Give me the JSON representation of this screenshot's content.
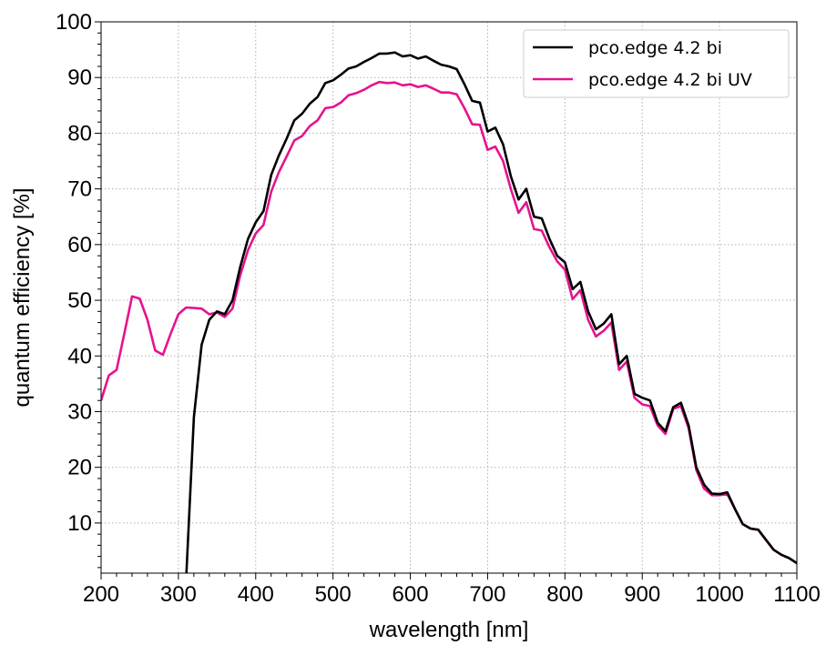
{
  "chart_data": {
    "type": "line",
    "xlabel": "wavelength [nm]",
    "ylabel": "quantum efficiency [%]",
    "xlim": [
      200,
      1100
    ],
    "ylim": [
      1,
      100
    ],
    "xticks": [
      200,
      300,
      400,
      500,
      600,
      700,
      800,
      900,
      1000,
      1100
    ],
    "yticks": [
      10,
      20,
      30,
      40,
      50,
      60,
      70,
      80,
      90,
      100
    ],
    "grid": true,
    "legend_position": "top-right",
    "series": [
      {
        "name": "pco.edge 4.2 bi",
        "color": "#000000",
        "x": [
          310,
          320,
          330,
          340,
          350,
          360,
          370,
          380,
          390,
          400,
          410,
          420,
          430,
          440,
          450,
          460,
          470,
          480,
          490,
          500,
          510,
          520,
          530,
          540,
          550,
          560,
          570,
          580,
          590,
          600,
          610,
          620,
          630,
          640,
          650,
          660,
          670,
          680,
          690,
          700,
          710,
          720,
          730,
          740,
          750,
          760,
          770,
          780,
          790,
          800,
          810,
          820,
          830,
          840,
          850,
          860,
          870,
          880,
          890,
          900,
          910,
          920,
          930,
          940,
          950,
          960,
          970,
          980,
          990,
          1000,
          1010,
          1020,
          1030,
          1040,
          1050,
          1060,
          1070,
          1080,
          1090,
          1100
        ],
        "y": [
          0,
          29,
          42,
          46.5,
          48,
          47.5,
          50,
          56,
          61,
          64,
          66,
          72.5,
          76,
          79,
          82.3,
          83.5,
          85.3,
          86.5,
          89,
          89.5,
          90.5,
          91.6,
          92,
          92.8,
          93.5,
          94.3,
          94.3,
          94.5,
          93.8,
          94,
          93.4,
          93.8,
          93,
          92.3,
          92,
          91.5,
          88.8,
          85.8,
          85.5,
          80.3,
          81,
          78,
          72.3,
          68.1,
          70,
          65,
          64.7,
          61,
          58,
          56.8,
          52,
          53.3,
          48,
          44.8,
          45.8,
          47.5,
          38.5,
          40,
          33.2,
          32.5,
          32,
          28,
          26.5,
          30.8,
          31.6,
          27.5,
          20,
          16.9,
          15.3,
          15.2,
          15.5,
          12.5,
          9.8,
          9,
          8.8,
          7,
          5.2,
          4.3,
          3.7,
          2.8
        ]
      },
      {
        "name": "pco.edge 4.2 bi UV",
        "color": "#e5138f",
        "x": [
          200,
          210,
          220,
          230,
          240,
          250,
          260,
          270,
          280,
          290,
          300,
          310,
          320,
          330,
          340,
          350,
          360,
          370,
          380,
          390,
          400,
          410,
          420,
          430,
          440,
          450,
          460,
          470,
          480,
          490,
          500,
          510,
          520,
          530,
          540,
          550,
          560,
          570,
          580,
          590,
          600,
          610,
          620,
          630,
          640,
          650,
          660,
          670,
          680,
          690,
          700,
          710,
          720,
          730,
          740,
          750,
          760,
          770,
          780,
          790,
          800,
          810,
          820,
          830,
          840,
          850,
          860,
          870,
          880,
          890,
          900,
          910,
          920,
          930,
          940,
          950,
          960,
          970,
          980,
          990,
          1000,
          1010,
          1020,
          1030,
          1040,
          1050,
          1060,
          1070,
          1080,
          1090,
          1100
        ],
        "y": [
          32,
          36.5,
          37.5,
          44,
          50.7,
          50.3,
          46.5,
          41,
          40.2,
          44,
          47.5,
          48.7,
          48.6,
          48.5,
          47.5,
          47.8,
          47,
          48.5,
          54.5,
          59,
          62,
          63.5,
          69.5,
          73,
          75.8,
          78.7,
          79.5,
          81.3,
          82.3,
          84.5,
          84.7,
          85.5,
          86.8,
          87.2,
          87.8,
          88.6,
          89.2,
          89,
          89.1,
          88.6,
          88.8,
          88.3,
          88.6,
          88,
          87.3,
          87.3,
          87,
          84.5,
          81.6,
          81.5,
          77,
          77.6,
          75,
          70,
          65.7,
          67.6,
          62.8,
          62.5,
          59.5,
          57,
          55.5,
          50.2,
          51.8,
          46.5,
          43.5,
          44.5,
          46,
          37.5,
          39,
          32.5,
          31.3,
          31,
          27.5,
          26,
          30.5,
          31,
          27,
          19.5,
          16.2,
          15,
          15,
          15.2,
          12.5,
          9.8,
          9,
          8.8,
          7,
          5.2,
          4.3,
          3.7,
          2.8
        ]
      }
    ]
  }
}
